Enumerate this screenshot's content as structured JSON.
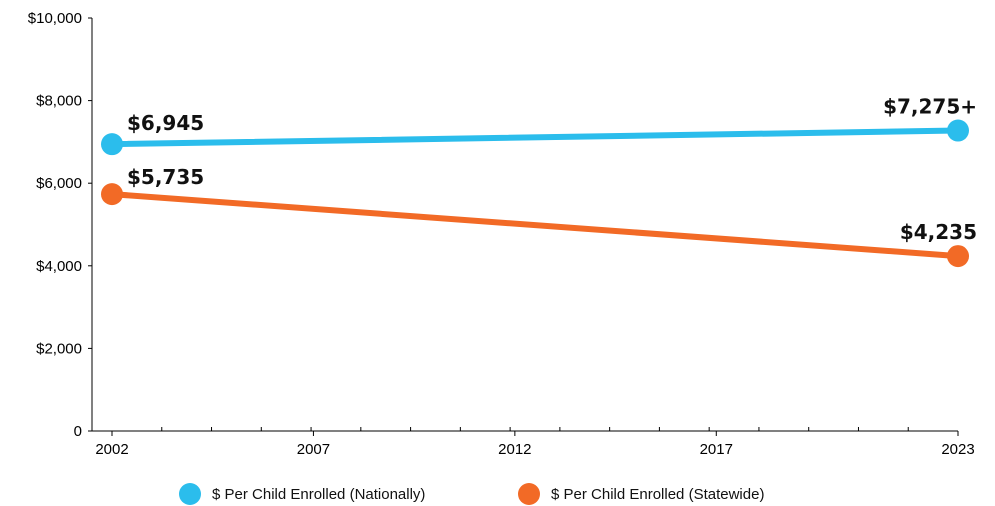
{
  "chart_data": {
    "type": "line",
    "x": [
      2002,
      2023
    ],
    "series": [
      {
        "name": "$ Per Child Enrolled (Nationally)",
        "color": "#2bbdec",
        "values": [
          6945,
          7275
        ],
        "labels": [
          "$6,945",
          "$7,275+"
        ]
      },
      {
        "name": "$ Per Child Enrolled (Statewide)",
        "color": "#f26a26",
        "values": [
          5735,
          4235
        ],
        "labels": [
          "$5,735",
          "$4,235"
        ]
      }
    ],
    "xlim": [
      2002,
      2023
    ],
    "ylim": [
      0,
      10000
    ],
    "x_tick_labels": [
      "2002",
      "2007",
      "2012",
      "2017",
      "2023"
    ],
    "y_tick_labels": [
      "0",
      "$2,000",
      "$4,000",
      "$6,000",
      "$8,000",
      "$10,000"
    ],
    "grid": false,
    "legend_position": "bottom"
  }
}
